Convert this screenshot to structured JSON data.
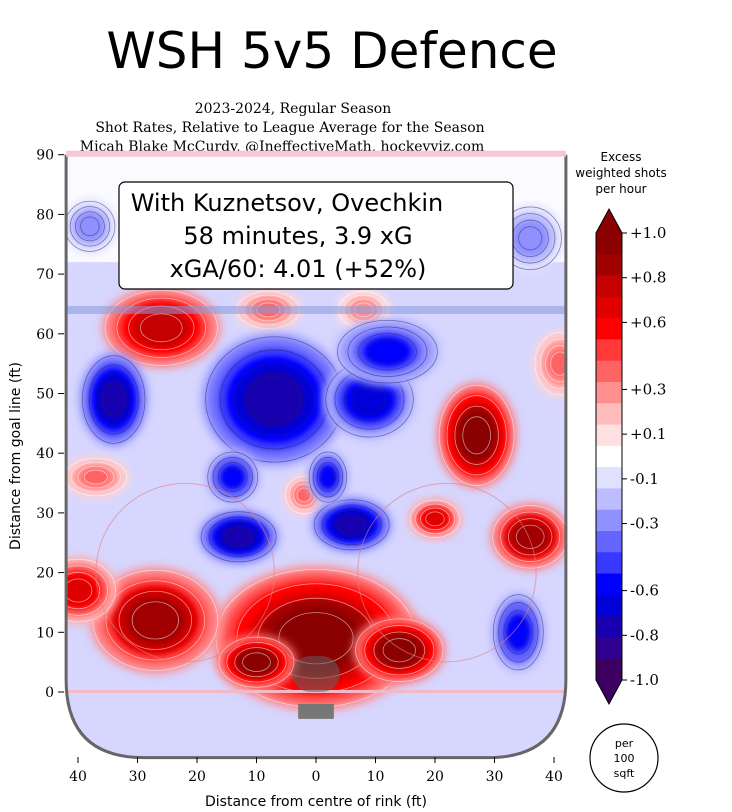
{
  "chart_data": {
    "type": "heatmap",
    "title": "WSH 5v5 Defence",
    "subtitle_lines": [
      "2023-2024, Regular Season",
      "Shot Rates, Relative to League Average for the Season",
      "Micah Blake McCurdy, @IneffectiveMath, hockeyviz.com"
    ],
    "annotation_lines": [
      "With Kuznetsov, Ovechkin",
      "58 minutes, 3.9 xG",
      "xGA/60: 4.01 (+52%)"
    ],
    "xlabel": "Distance from centre of rink (ft)",
    "ylabel": "Distance from goal line (ft)",
    "x_range": [
      -42,
      42
    ],
    "y_range": [
      -11,
      90
    ],
    "x_ticks": [
      {
        "value": -40,
        "label": "40"
      },
      {
        "value": -30,
        "label": "30"
      },
      {
        "value": -20,
        "label": "20"
      },
      {
        "value": -10,
        "label": "10"
      },
      {
        "value": 0,
        "label": "0"
      },
      {
        "value": 10,
        "label": "10"
      },
      {
        "value": 20,
        "label": "20"
      },
      {
        "value": 30,
        "label": "30"
      },
      {
        "value": 40,
        "label": "40"
      }
    ],
    "y_ticks": [
      {
        "value": 0,
        "label": "0"
      },
      {
        "value": 10,
        "label": "10"
      },
      {
        "value": 20,
        "label": "20"
      },
      {
        "value": 30,
        "label": "30"
      },
      {
        "value": 40,
        "label": "40"
      },
      {
        "value": 50,
        "label": "50"
      },
      {
        "value": 60,
        "label": "60"
      },
      {
        "value": 70,
        "label": "70"
      },
      {
        "value": 80,
        "label": "80"
      },
      {
        "value": 90,
        "label": "90"
      }
    ],
    "colorbar": {
      "title_lines": [
        "Excess",
        "weighted shots",
        "per hour"
      ],
      "range": [
        -1.0,
        1.0
      ],
      "tick_values": [
        1.0,
        0.8,
        0.6,
        0.3,
        0.1,
        -0.1,
        -0.3,
        -0.6,
        -0.8,
        -1.0
      ],
      "tick_labels": [
        "+1.0",
        "+0.8",
        "+0.6",
        "+0.3",
        "+0.1",
        "-0.1",
        "-0.3",
        "-0.6",
        "-0.8",
        "-1.0"
      ],
      "colors_top_to_bottom": [
        "#8b0000",
        "#a00000",
        "#c40000",
        "#e00000",
        "#ff0000",
        "#ff3838",
        "#ff6464",
        "#ff9090",
        "#ffbcbc",
        "#ffe0e0",
        "#ffffff",
        "#e0e0ff",
        "#bcbcff",
        "#9090ff",
        "#6464ff",
        "#3838ff",
        "#0000ff",
        "#0000d8",
        "#1800b0",
        "#300090",
        "#3d0060"
      ]
    },
    "unit_badge_lines": [
      "per",
      "100",
      "sqft"
    ],
    "regions": [
      {
        "x": 0,
        "y": 9,
        "rx": 16,
        "ry": 11,
        "value": 1.0
      },
      {
        "x": -10,
        "y": 5,
        "rx": 6,
        "ry": 4,
        "value": 1.0
      },
      {
        "x": 14,
        "y": 7,
        "rx": 7,
        "ry": 5,
        "value": 1.0
      },
      {
        "x": -27,
        "y": 12,
        "rx": 10,
        "ry": 8,
        "value": 0.9
      },
      {
        "x": -40,
        "y": 17,
        "rx": 6,
        "ry": 5,
        "value": 0.7
      },
      {
        "x": 27,
        "y": 43,
        "rx": 6,
        "ry": 8,
        "value": 1.0
      },
      {
        "x": 36,
        "y": 26,
        "rx": 6,
        "ry": 5,
        "value": 0.9
      },
      {
        "x": 20,
        "y": 29,
        "rx": 4,
        "ry": 3,
        "value": 0.7
      },
      {
        "x": -26,
        "y": 61,
        "rx": 9,
        "ry": 6,
        "value": 0.8
      },
      {
        "x": -8,
        "y": 64,
        "rx": 5,
        "ry": 3,
        "value": 0.4
      },
      {
        "x": 8,
        "y": 64,
        "rx": 4,
        "ry": 3,
        "value": 0.3
      },
      {
        "x": -37,
        "y": 36,
        "rx": 5,
        "ry": 3,
        "value": 0.35
      },
      {
        "x": -2,
        "y": 33,
        "rx": 3,
        "ry": 3,
        "value": 0.35
      },
      {
        "x": 41,
        "y": 55,
        "rx": 4,
        "ry": 5,
        "value": 0.35
      },
      {
        "x": -34,
        "y": 49,
        "rx": 5,
        "ry": 7,
        "value": -0.75
      },
      {
        "x": -7,
        "y": 49,
        "rx": 11,
        "ry": 10,
        "value": -0.8
      },
      {
        "x": 9,
        "y": 49,
        "rx": 7,
        "ry": 6,
        "value": -0.7
      },
      {
        "x": -13,
        "y": 26,
        "rx": 6,
        "ry": 4,
        "value": -0.8
      },
      {
        "x": 6,
        "y": 28,
        "rx": 6,
        "ry": 4,
        "value": -0.8
      },
      {
        "x": -14,
        "y": 36,
        "rx": 4,
        "ry": 4,
        "value": -0.6
      },
      {
        "x": 2,
        "y": 36,
        "rx": 3,
        "ry": 4,
        "value": -0.6
      },
      {
        "x": 34,
        "y": 10,
        "rx": 4,
        "ry": 6,
        "value": -0.6
      },
      {
        "x": 12,
        "y": 57,
        "rx": 8,
        "ry": 5,
        "value": -0.55
      },
      {
        "x": -38,
        "y": 78,
        "rx": 4,
        "ry": 4,
        "value": -0.3
      },
      {
        "x": 36,
        "y": 76,
        "rx": 5,
        "ry": 5,
        "value": -0.3
      }
    ]
  }
}
